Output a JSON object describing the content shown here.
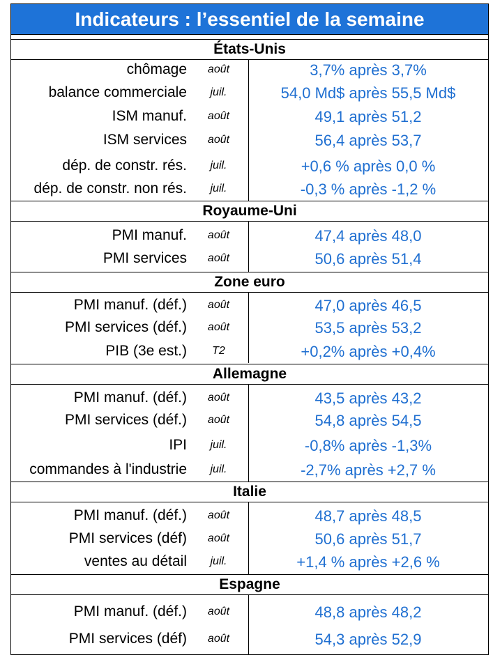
{
  "title": "Indicateurs : l’essentiel de la semaine",
  "sections": [
    {
      "name": "États-Unis",
      "rows": [
        {
          "label": "chômage",
          "period": "août",
          "value": "3,7% après 3,7%"
        },
        {
          "label": "balance commerciale",
          "period": "juil.",
          "value": "54,0 Md$ après 55,5 Md$"
        },
        {
          "label": "ISM manuf.",
          "period": "août",
          "value": "49,1 après 51,2"
        },
        {
          "label": "ISM services",
          "period": "août",
          "value": "56,4 après 53,7"
        },
        {
          "label": "dép. de constr. rés.",
          "period": "juil.",
          "value": "+0,6 % après 0,0 %"
        },
        {
          "label": "dép. de constr. non rés.",
          "period": "juil.",
          "value": "-0,3 % après -1,2 %"
        }
      ]
    },
    {
      "name": "Royaume-Uni",
      "rows": [
        {
          "label": "PMI manuf.",
          "period": "août",
          "value": "47,4 après 48,0"
        },
        {
          "label": "PMI services",
          "period": "août",
          "value": "50,6 après 51,4"
        }
      ]
    },
    {
      "name": "Zone euro",
      "rows": [
        {
          "label": "PMI manuf. (déf.)",
          "period": "août",
          "value": "47,0 après 46,5"
        },
        {
          "label": "PMI services (déf.)",
          "period": "août",
          "value": "53,5 après 53,2"
        },
        {
          "label": "PIB (3e est.)",
          "period": "T2",
          "value": "+0,2% après +0,4%"
        }
      ]
    },
    {
      "name": "Allemagne",
      "rows": [
        {
          "label": "PMI manuf. (déf.)",
          "period": "août",
          "value": "43,5 après 43,2"
        },
        {
          "label": "PMI services (déf.)",
          "period": "août",
          "value": "54,8 après 54,5"
        },
        {
          "label": "IPI",
          "period": "juil.",
          "value": "-0,8% après -1,3%"
        },
        {
          "label": "commandes à l'industrie",
          "period": "juil.",
          "value": "-2,7% après +2,7 %"
        }
      ]
    },
    {
      "name": "Italie",
      "rows": [
        {
          "label": "PMI manuf. (déf.)",
          "period": "août",
          "value": "48,7 après 48,5"
        },
        {
          "label": "PMI services (déf)",
          "period": "août",
          "value": "50,6 après 51,7"
        },
        {
          "label": "ventes au détail",
          "period": "juil.",
          "value": "+1,4 % après +2,6 %"
        }
      ]
    },
    {
      "name": "Espagne",
      "rows": [
        {
          "label": "PMI manuf. (déf.)",
          "period": "août",
          "value": "48,8 après 48,2"
        },
        {
          "label": "PMI services (déf)",
          "period": "août",
          "value": "54,3 après 52,9"
        }
      ]
    }
  ],
  "colors": {
    "title_bg": "#1e73d8",
    "value_text": "#1f6fd1"
  }
}
